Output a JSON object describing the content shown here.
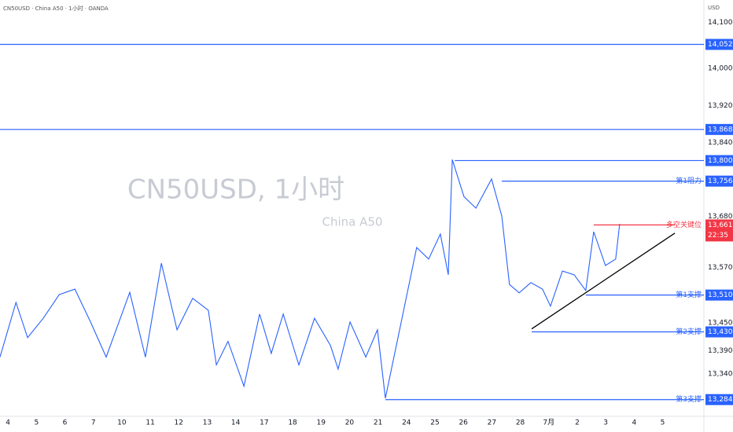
{
  "chart_data": {
    "type": "line",
    "header": "CN50USD · China A50 · 1小时 · OANDA",
    "watermark_title": "CN50USD, 1小时",
    "watermark_subtitle": "China A50",
    "currency": "USD",
    "categories": [
      "4",
      "5",
      "6",
      "7",
      "10",
      "11",
      "12",
      "13",
      "14",
      "17",
      "18",
      "19",
      "20",
      "21",
      "24",
      "25",
      "26",
      "27",
      "28",
      "7月",
      "2",
      "3",
      "4",
      "5"
    ],
    "xlim": [
      -0.28,
      24.45
    ],
    "ylim": [
      13248,
      14148
    ],
    "yticks": [
      {
        "value": 14100,
        "label": "14,100.0"
      },
      {
        "value": 14000,
        "label": "14,000.0"
      },
      {
        "value": 13920,
        "label": "13,920.0"
      },
      {
        "value": 13840,
        "label": "13,840.0"
      },
      {
        "value": 13680,
        "label": "13,680.0"
      },
      {
        "value": 13570,
        "label": "13,570.0"
      },
      {
        "value": 13450,
        "label": "13,450.0"
      },
      {
        "value": 13390,
        "label": "13,390.0"
      },
      {
        "value": 13340,
        "label": "13,340.0"
      }
    ],
    "grid": false,
    "series": [
      {
        "color": "#2962ff",
        "x": [
          -0.28,
          0.28,
          0.69,
          1.24,
          1.8,
          2.35,
          2.9,
          3.45,
          4.28,
          4.83,
          5.39,
          5.94,
          6.49,
          7.04,
          7.32,
          7.73,
          8.29,
          8.84,
          9.25,
          9.67,
          10.22,
          10.77,
          11.33,
          11.6,
          12.02,
          12.57,
          12.98,
          13.26,
          13.76,
          14.36,
          14.78,
          15.19,
          15.47,
          15.61,
          16.02,
          16.44,
          16.99,
          17.35,
          17.62,
          17.96,
          18.37,
          18.78,
          19.06,
          19.48,
          19.89,
          20.3,
          20.58,
          20.99,
          21.35,
          21.49
        ],
        "values": [
          13376,
          13494,
          13418,
          13460,
          13511,
          13523,
          13452,
          13376,
          13516,
          13376,
          13579,
          13435,
          13503,
          13477,
          13359,
          13410,
          13313,
          13469,
          13384,
          13469,
          13359,
          13460,
          13401,
          13350,
          13452,
          13376,
          13435,
          13287,
          13435,
          13613,
          13588,
          13642,
          13554,
          13803,
          13723,
          13698,
          13761,
          13681,
          13533,
          13515,
          13537,
          13523,
          13486,
          13562,
          13554,
          13520,
          13647,
          13574,
          13588,
          13664
        ]
      }
    ],
    "trendline": {
      "color": "#000000",
      "x": [
        18.4,
        23.43
      ],
      "values": [
        13437,
        13644
      ]
    },
    "levels": [
      {
        "value": 14052.0,
        "value_label": "14,052.0",
        "color": "#2962ff"
      },
      {
        "value": 13868.1,
        "value_label": "13,868.1",
        "color": "#2962ff"
      },
      {
        "value": 13800.8,
        "value_label": "13,800.8",
        "color": "#2962ff",
        "x_start": 15.7
      },
      {
        "value": 13756.4,
        "value_label": "13,756.4",
        "color": "#2962ff",
        "x_start": 17.35,
        "text": "第1阻力"
      },
      {
        "value": 13661.7,
        "value_label": "13,661.7",
        "color": "#f23645",
        "x_start": 20.58,
        "x_end": 23.43,
        "text": "多空关键位",
        "countdown": "22:35"
      },
      {
        "value": 13510.1,
        "value_label": "13,510.1",
        "color": "#2962ff",
        "x_start": 20.3,
        "text": "第1支撑"
      },
      {
        "value": 13430.5,
        "value_label": "13,430.5",
        "color": "#2962ff",
        "x_start": 18.4,
        "text": "第2支撑"
      },
      {
        "value": 13284.1,
        "value_label": "13,284.1",
        "color": "#2962ff",
        "x_start": 13.26,
        "text": "第3支撑"
      }
    ]
  }
}
